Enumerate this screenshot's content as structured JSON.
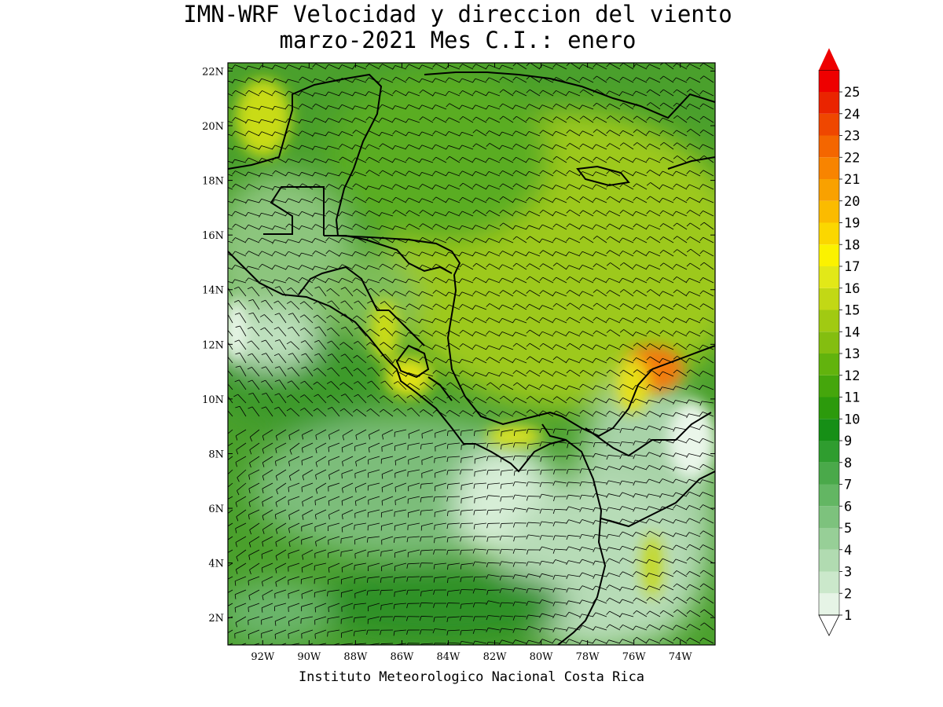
{
  "title": {
    "line1": "IMN-WRF Velocidad y direccion del viento",
    "line2": "marzo-2021 Mes C.I.: enero"
  },
  "footer": "Instituto Meteorologico Nacional Costa Rica",
  "map": {
    "lon_range": [
      -93.5,
      -72.5
    ],
    "lat_range": [
      1,
      22.3
    ],
    "lon_ticks": [
      "92W",
      "90W",
      "88W",
      "86W",
      "84W",
      "82W",
      "80W",
      "78W",
      "76W",
      "74W"
    ],
    "lat_ticks": [
      "2N",
      "4N",
      "6N",
      "8N",
      "10N",
      "12N",
      "14N",
      "16N",
      "18N",
      "20N",
      "22N"
    ]
  },
  "colorbar": {
    "labels": [
      "1",
      "2",
      "3",
      "4",
      "5",
      "6",
      "7",
      "8",
      "9",
      "10",
      "11",
      "12",
      "13",
      "14",
      "15",
      "16",
      "17",
      "18",
      "19",
      "20",
      "21",
      "22",
      "23",
      "24",
      "25"
    ],
    "colors": [
      "#e6f4e6",
      "#cbe8cb",
      "#b1dbb1",
      "#97cf97",
      "#7dc27d",
      "#63b663",
      "#4aa94a",
      "#2f9d2f",
      "#168f16",
      "#2c9a0c",
      "#45a60c",
      "#62b30d",
      "#84be10",
      "#a1ca12",
      "#c2d815",
      "#e2e818",
      "#fbf200",
      "#fbd700",
      "#fbbb00",
      "#f9a100",
      "#f88400",
      "#f46600",
      "#ef4700",
      "#ea2400",
      "#ee0000"
    ]
  }
}
